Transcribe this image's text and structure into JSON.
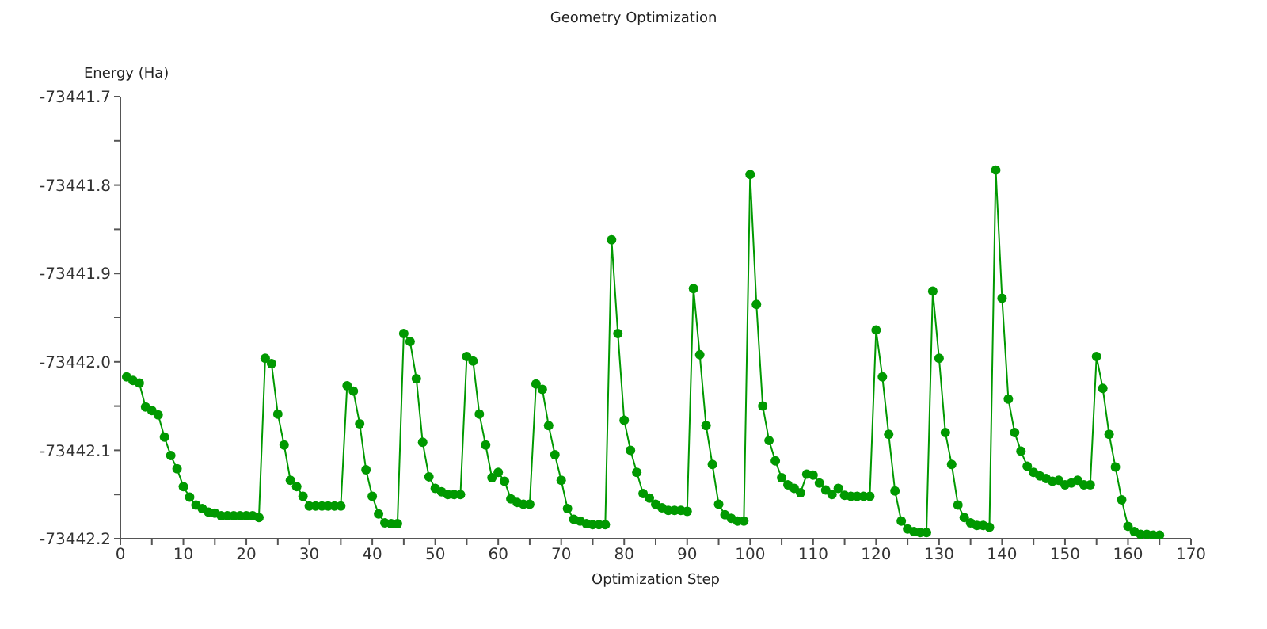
{
  "chart_data": {
    "type": "line",
    "title": "Geometry Optimization",
    "xlabel": "Optimization Step",
    "ylabel": "Energy (Ha)",
    "x": [
      1,
      2,
      3,
      4,
      5,
      6,
      7,
      8,
      9,
      10,
      11,
      12,
      13,
      14,
      15,
      16,
      17,
      18,
      19,
      20,
      21,
      22,
      23,
      24,
      25,
      26,
      27,
      28,
      29,
      30,
      31,
      32,
      33,
      34,
      35,
      36,
      37,
      38,
      39,
      40,
      41,
      42,
      43,
      44,
      45,
      46,
      47,
      48,
      49,
      50,
      51,
      52,
      53,
      54,
      55,
      56,
      57,
      58,
      59,
      60,
      61,
      62,
      63,
      64,
      65,
      66,
      67,
      68,
      69,
      70,
      71,
      72,
      73,
      74,
      75,
      76,
      77,
      78,
      79,
      80,
      81,
      82,
      83,
      84,
      85,
      86,
      87,
      88,
      89,
      90,
      91,
      92,
      93,
      94,
      95,
      96,
      97,
      98,
      99,
      100,
      101,
      102,
      103,
      104,
      105,
      106,
      107,
      108,
      109,
      110,
      111,
      112,
      113,
      114,
      115,
      116,
      117,
      118,
      119,
      120,
      121,
      122,
      123,
      124,
      125,
      126,
      127,
      128,
      129,
      130,
      131,
      132,
      133,
      134,
      135,
      136,
      137,
      138,
      139,
      140,
      141,
      142,
      143,
      144,
      145,
      146,
      147,
      148,
      149,
      150,
      151,
      152,
      153,
      154,
      155,
      156,
      157,
      158,
      159,
      160,
      161,
      162,
      163,
      164,
      165
    ],
    "series": [
      {
        "color": "#009900",
        "values": [
          -73442.017,
          -73442.021,
          -73442.024,
          -73442.051,
          -73442.055,
          -73442.06,
          -73442.085,
          -73442.106,
          -73442.121,
          -73442.141,
          -73442.153,
          -73442.162,
          -73442.166,
          -73442.17,
          -73442.171,
          -73442.174,
          -73442.174,
          -73442.174,
          -73442.174,
          -73442.174,
          -73442.174,
          -73442.176,
          -73441.996,
          -73442.002,
          -73442.059,
          -73442.094,
          -73442.134,
          -73442.141,
          -73442.152,
          -73442.163,
          -73442.163,
          -73442.163,
          -73442.163,
          -73442.163,
          -73442.163,
          -73442.027,
          -73442.033,
          -73442.07,
          -73442.122,
          -73442.152,
          -73442.172,
          -73442.182,
          -73442.183,
          -73442.183,
          -73441.968,
          -73441.977,
          -73442.019,
          -73442.091,
          -73442.13,
          -73442.143,
          -73442.147,
          -73442.15,
          -73442.15,
          -73442.15,
          -73441.994,
          -73441.999,
          -73442.059,
          -73442.094,
          -73442.131,
          -73442.125,
          -73442.135,
          -73442.155,
          -73442.159,
          -73442.161,
          -73442.161,
          -73442.025,
          -73442.031,
          -73442.072,
          -73442.105,
          -73442.134,
          -73442.166,
          -73442.178,
          -73442.18,
          -73442.183,
          -73442.184,
          -73442.184,
          -73442.184,
          -73441.862,
          -73441.968,
          -73442.066,
          -73442.1,
          -73442.125,
          -73442.149,
          -73442.154,
          -73442.161,
          -73442.165,
          -73442.168,
          -73442.168,
          -73442.168,
          -73442.169,
          -73441.917,
          -73441.992,
          -73442.072,
          -73442.116,
          -73442.161,
          -73442.173,
          -73442.177,
          -73442.18,
          -73442.18,
          -73441.788,
          -73441.935,
          -73442.05,
          -73442.089,
          -73442.112,
          -73442.131,
          -73442.139,
          -73442.143,
          -73442.148,
          -73442.127,
          -73442.128,
          -73442.137,
          -73442.145,
          -73442.15,
          -73442.143,
          -73442.151,
          -73442.152,
          -73442.152,
          -73442.152,
          -73442.152,
          -73441.964,
          -73442.017,
          -73442.082,
          -73442.146,
          -73442.18,
          -73442.189,
          -73442.192,
          -73442.193,
          -73442.193,
          -73441.92,
          -73441.996,
          -73442.08,
          -73442.116,
          -73442.162,
          -73442.176,
          -73442.182,
          -73442.185,
          -73442.185,
          -73442.187,
          -73441.783,
          -73441.928,
          -73442.042,
          -73442.08,
          -73442.101,
          -73442.118,
          -73442.125,
          -73442.129,
          -73442.132,
          -73442.135,
          -73442.134,
          -73442.139,
          -73442.137,
          -73442.134,
          -73442.139,
          -73442.139,
          -73441.994,
          -73442.03,
          -73442.082,
          -73442.119,
          -73442.156,
          -73442.186,
          -73442.192,
          -73442.195,
          -73442.195,
          -73442.196,
          -73442.196
        ]
      }
    ],
    "xlim": [
      0,
      170
    ],
    "xticks": [
      0,
      {
        "value": 5,
        "label": null
      },
      10,
      {
        "value": 15,
        "label": null
      },
      20,
      {
        "value": 25,
        "label": null
      },
      30,
      {
        "value": 35,
        "label": null
      },
      40,
      {
        "value": 45,
        "label": null
      },
      50,
      {
        "value": 55,
        "label": null
      },
      60,
      {
        "value": 65,
        "label": null
      },
      70,
      {
        "value": 75,
        "label": null
      },
      80,
      {
        "value": 85,
        "label": null
      },
      90,
      {
        "value": 95,
        "label": null
      },
      100,
      {
        "value": 105,
        "label": null
      },
      110,
      {
        "value": 115,
        "label": null
      },
      120,
      {
        "value": 125,
        "label": null
      },
      130,
      {
        "value": 135,
        "label": null
      },
      140,
      {
        "value": 145,
        "label": null
      },
      150,
      {
        "value": 155,
        "label": null
      },
      160,
      {
        "value": 165,
        "label": null
      },
      170
    ],
    "ylim": [
      -73442.2,
      -73441.7
    ],
    "yticks": [
      -73442.2,
      {
        "value": -73442.15,
        "label": null
      },
      -73442.1,
      {
        "value": -73442.05,
        "label": null
      },
      {
        "value": -73442,
        "label": "-73442.0"
      },
      {
        "value": -73441.95,
        "label": null
      },
      -73441.9,
      {
        "value": -73441.85,
        "label": null
      },
      -73441.8,
      {
        "value": -73441.75,
        "label": null
      },
      -73441.7
    ],
    "grid": false,
    "legend": false,
    "marker": "circle",
    "line_style": "solid"
  }
}
